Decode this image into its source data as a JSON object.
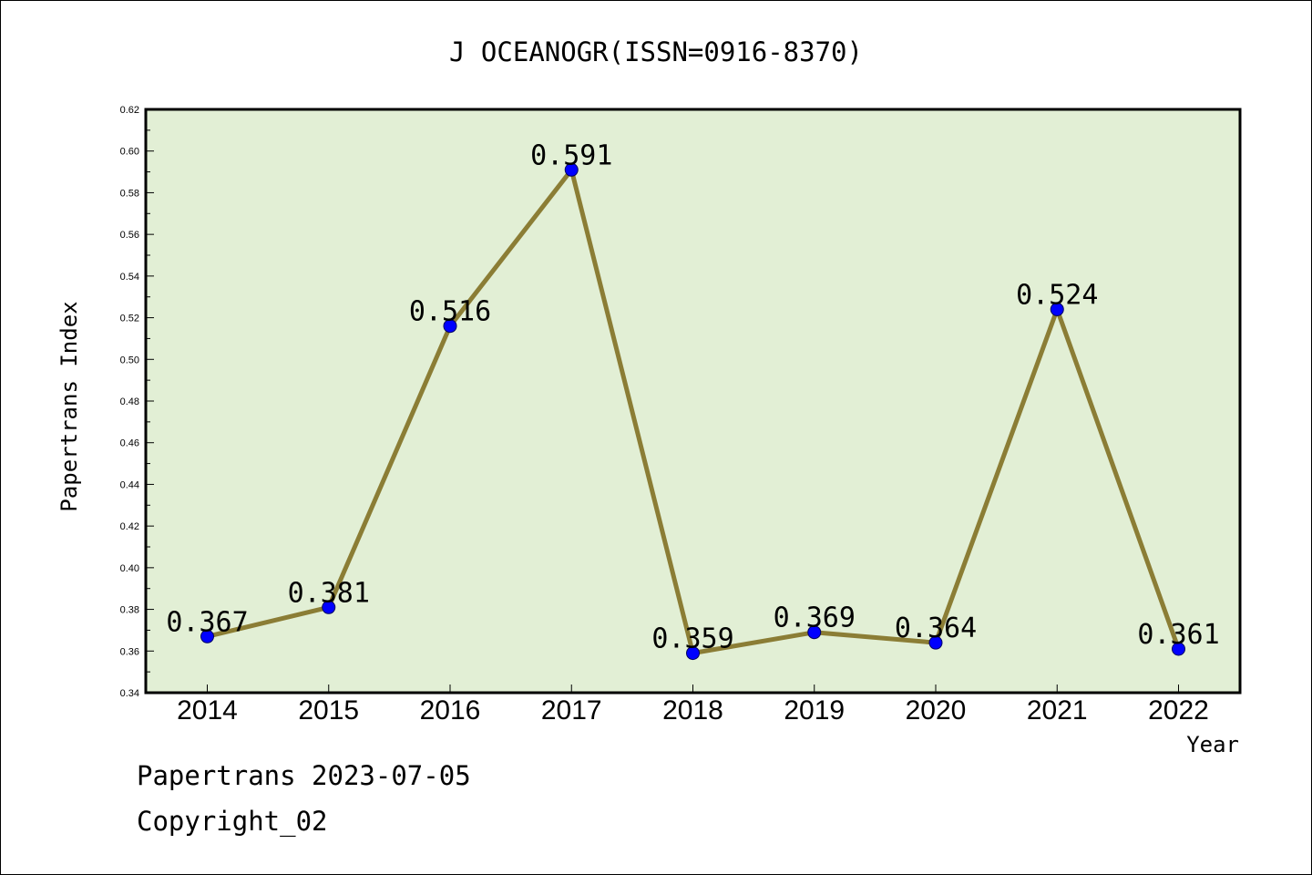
{
  "footer": {
    "line1": "Papertrans 2023-07-05",
    "line2": "Copyright_02"
  },
  "colors": {
    "plot_bg": "#E2EFD5",
    "line": "#8B7D35",
    "marker": "#0000FF",
    "frame": "#000000"
  },
  "chart_data": {
    "type": "line",
    "title": "J OCEANOGR(ISSN=0916-8370)",
    "xlabel": "Year",
    "ylabel": "Papertrans Index",
    "categories": [
      "2014",
      "2015",
      "2016",
      "2017",
      "2018",
      "2019",
      "2020",
      "2021",
      "2022"
    ],
    "series": [
      {
        "values": [
          0.367,
          0.381,
          0.516,
          0.591,
          0.359,
          0.369,
          0.364,
          0.524,
          0.361
        ],
        "labels": [
          "0.367",
          "0.381",
          "0.516",
          "0.591",
          "0.359",
          "0.369",
          "0.364",
          "0.524",
          "0.361"
        ]
      }
    ],
    "ylim": [
      0.34,
      0.62
    ],
    "yticks": [
      "0.34",
      "0.36",
      "0.38",
      "0.40",
      "0.42",
      "0.44",
      "0.46",
      "0.48",
      "0.50",
      "0.52",
      "0.54",
      "0.56",
      "0.58",
      "0.60",
      "0.62"
    ],
    "grid": false,
    "legend": "none"
  }
}
